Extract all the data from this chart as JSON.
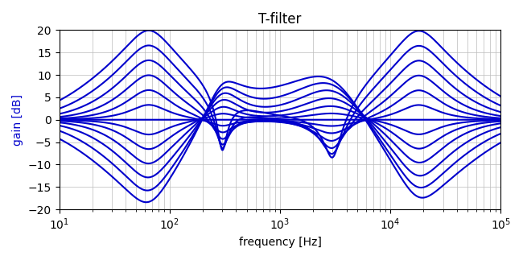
{
  "title": "T-filter",
  "xlabel": "frequency [Hz]",
  "ylabel": "gain [dB]",
  "line_color": "#0000cc",
  "line_width": 1.5,
  "ylim": [
    -20,
    20
  ],
  "xlim": [
    10,
    100000
  ],
  "ylabel_color": "#0000cc",
  "gain_levels": [
    -1.0,
    -0.833,
    -0.667,
    -0.5,
    -0.333,
    -0.167,
    0.0,
    0.167,
    0.333,
    0.5,
    0.667,
    0.833,
    1.0
  ]
}
